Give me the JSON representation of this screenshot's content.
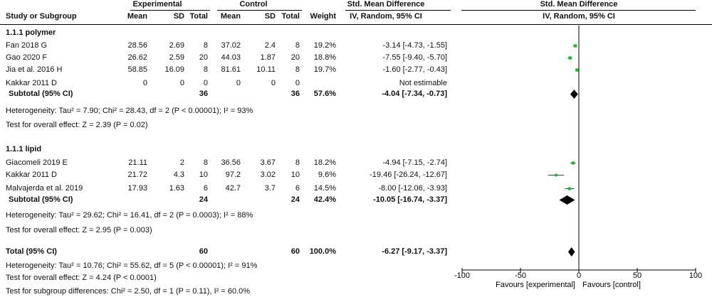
{
  "headers": {
    "study": "Study or Subgroup",
    "experimental": "Experimental",
    "control": "Control",
    "mean": "Mean",
    "sd": "SD",
    "total": "Total",
    "weight": "Weight",
    "effect_title": "Std. Mean Difference",
    "effect_sub": "IV, Random, 95% CI",
    "plot_title": "Std. Mean Difference",
    "plot_sub": "IV, Random, 95% CI"
  },
  "groups": [
    {
      "name": "1.1.1 polymer",
      "studies": [
        {
          "study": "Fan 2018 G",
          "e_mean": "28.56",
          "e_sd": "2.69",
          "e_total": "8",
          "c_mean": "37.02",
          "c_sd": "2.4",
          "c_total": "8",
          "weight": "19.2%",
          "ci": "-3.14 [-4.73, -1.55]"
        },
        {
          "study": "Gao 2020 F",
          "e_mean": "26.62",
          "e_sd": "2.59",
          "e_total": "20",
          "c_mean": "44.03",
          "c_sd": "1.87",
          "c_total": "20",
          "weight": "18.8%",
          "ci": "-7.55 [-9.40, -5.70]"
        },
        {
          "study": "Jia et al. 2016 H",
          "e_mean": "58.85",
          "e_sd": "16.09",
          "e_total": "8",
          "c_mean": "81.61",
          "c_sd": "10.11",
          "c_total": "8",
          "weight": "19.7%",
          "ci": "-1.60 [-2.77, -0.43]"
        },
        {
          "study": "Kakkar 2011 D",
          "e_mean": "0",
          "e_sd": "0",
          "e_total": "0",
          "c_mean": "0",
          "c_sd": "0",
          "c_total": "0",
          "weight": "",
          "ci": "Not estimable"
        }
      ],
      "subtotal": {
        "label": "Subtotal (95% CI)",
        "e_total": "36",
        "c_total": "36",
        "weight": "57.6%",
        "ci": "-4.04 [-7.34, -0.73]"
      },
      "heterogeneity": "Heterogeneity: Tau² = 7.90; Chi² = 28.43, df = 2 (P < 0.00001); I² = 93%",
      "overall": "Test for overall effect: Z = 2.39 (P = 0.02)"
    },
    {
      "name": "1.1.1 lipid",
      "studies": [
        {
          "study": "Giacomeli 2019 E",
          "e_mean": "21.11",
          "e_sd": "2",
          "e_total": "8",
          "c_mean": "36.56",
          "c_sd": "3.67",
          "c_total": "8",
          "weight": "18.2%",
          "ci": "-4.94 [-7.15, -2.74]"
        },
        {
          "study": "Kakkar 2011 D",
          "e_mean": "21.72",
          "e_sd": "4.3",
          "e_total": "10",
          "c_mean": "97.2",
          "c_sd": "3.02",
          "c_total": "10",
          "weight": "9.6%",
          "ci": "-19.46 [-26.24, -12.67]"
        },
        {
          "study": "Malvajerda et al. 2019",
          "e_mean": "17.93",
          "e_sd": "1.63",
          "e_total": "6",
          "c_mean": "42.7",
          "c_sd": "3.7",
          "c_total": "6",
          "weight": "14.5%",
          "ci": "-8.00 [-12.06, -3.93]"
        }
      ],
      "subtotal": {
        "label": "Subtotal (95% CI)",
        "e_total": "24",
        "c_total": "24",
        "weight": "42.4%",
        "ci": "-10.05 [-16.74, -3.37]"
      },
      "heterogeneity": "Heterogeneity: Tau² = 29.62; Chi² = 16.41, df = 2 (P = 0.0003); I² = 88%",
      "overall": "Test for overall effect: Z = 2.95 (P = 0.003)"
    }
  ],
  "total": {
    "label": "Total (95% CI)",
    "e_total": "60",
    "c_total": "60",
    "weight": "100.0%",
    "ci": "-6.27 [-9.17, -3.37]",
    "heterogeneity": "Heterogeneity: Tau² = 10.76; Chi² = 55.62, df = 5 (P < 0.00001); I² = 91%",
    "overall": "Test for overall effect: Z = 4.24 (P < 0.0001)",
    "subgroup": "Test for subgroup differences: Chi² = 2.50, df = 1 (P = 0.11), I² = 60.0%"
  },
  "chart_data": {
    "type": "scatter",
    "subtype": "forest",
    "title": "Std. Mean Difference",
    "subtitle": "IV, Random, 95% CI",
    "xlim": [
      -100,
      100
    ],
    "xticks": [
      -100,
      -50,
      0,
      50,
      100
    ],
    "xtick_labels": [
      "-100",
      "-50",
      "0",
      "50",
      "100"
    ],
    "favours_left": "Favours [experimental]",
    "favours_right": "Favours [control]",
    "study_color": "#22bb22",
    "study_ci_color": "#1a4a7a",
    "diamond_color": "#000000",
    "studies": [
      {
        "study": "Fan 2018 G",
        "est": -3.14,
        "lo": -4.73,
        "hi": -1.55,
        "weight": 19.2
      },
      {
        "study": "Gao 2020 F",
        "est": -7.55,
        "lo": -9.4,
        "hi": -5.7,
        "weight": 18.8
      },
      {
        "study": "Jia et al. 2016 H",
        "est": -1.6,
        "lo": -2.77,
        "hi": -0.43,
        "weight": 19.7
      },
      {
        "study": "Kakkar 2011 D",
        "est": null,
        "lo": null,
        "hi": null,
        "weight": null
      },
      {
        "study": "Giacomeli 2019 E",
        "est": -4.94,
        "lo": -7.15,
        "hi": -2.74,
        "weight": 18.2
      },
      {
        "study": "Kakkar 2011 D",
        "est": -19.46,
        "lo": -26.24,
        "hi": -12.67,
        "weight": 9.6
      },
      {
        "study": "Malvajerda et al. 2019",
        "est": -8.0,
        "lo": -12.06,
        "hi": -3.93,
        "weight": 14.5
      }
    ],
    "subtotals": [
      {
        "label": "Subtotal (95% CI)",
        "group": "1.1.1 polymer",
        "est": -4.04,
        "lo": -7.34,
        "hi": -0.73
      },
      {
        "label": "Subtotal (95% CI)",
        "group": "1.1.1 lipid",
        "est": -10.05,
        "lo": -16.74,
        "hi": -3.37
      }
    ],
    "overall": {
      "label": "Total (95% CI)",
      "est": -6.27,
      "lo": -9.17,
      "hi": -3.37
    }
  }
}
